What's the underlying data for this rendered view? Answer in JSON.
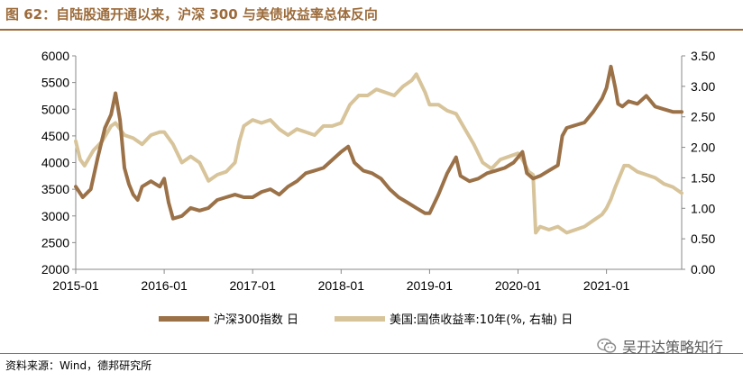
{
  "title": "图 62：自陆股通开通以来，沪深 300 与美债收益率总体反向",
  "source": "资料来源：Wind，德邦研究所",
  "watermark": "吴开达策略知行",
  "colors": {
    "accent": "#9c6b3a",
    "hs300": "#9b7148",
    "ust10y": "#d8c49a"
  },
  "chart_data": {
    "type": "line",
    "x_tick_labels": [
      "2015-01",
      "2016-01",
      "2017-01",
      "2018-01",
      "2019-01",
      "2020-01",
      "2021-01"
    ],
    "x_start": 2015.0,
    "x_end": 2021.85,
    "y_left": {
      "ylim": [
        2000,
        6000
      ],
      "ticks": [
        2000,
        2500,
        3000,
        3500,
        4000,
        4500,
        5000,
        5500,
        6000
      ]
    },
    "y_right": {
      "ylim": [
        0.0,
        3.5
      ],
      "ticks": [
        "0.00",
        "0.50",
        "1.00",
        "1.50",
        "2.00",
        "2.50",
        "3.00",
        "3.50"
      ]
    },
    "series": [
      {
        "name": "沪深300指数 日",
        "axis": "left",
        "x": [
          2015.0,
          2015.08,
          2015.17,
          2015.25,
          2015.33,
          2015.4,
          2015.45,
          2015.5,
          2015.55,
          2015.6,
          2015.65,
          2015.7,
          2015.75,
          2015.85,
          2015.95,
          2016.0,
          2016.05,
          2016.1,
          2016.2,
          2016.3,
          2016.4,
          2016.5,
          2016.6,
          2016.7,
          2016.8,
          2016.9,
          2017.0,
          2017.1,
          2017.2,
          2017.3,
          2017.4,
          2017.5,
          2017.6,
          2017.7,
          2017.8,
          2017.9,
          2018.0,
          2018.08,
          2018.15,
          2018.25,
          2018.35,
          2018.45,
          2018.55,
          2018.65,
          2018.75,
          2018.85,
          2018.95,
          2019.0,
          2019.1,
          2019.2,
          2019.3,
          2019.35,
          2019.45,
          2019.55,
          2019.65,
          2019.75,
          2019.85,
          2019.95,
          2020.0,
          2020.05,
          2020.1,
          2020.17,
          2020.25,
          2020.35,
          2020.45,
          2020.5,
          2020.55,
          2020.65,
          2020.75,
          2020.85,
          2020.95,
          2021.0,
          2021.05,
          2021.1,
          2021.13,
          2021.18,
          2021.25,
          2021.35,
          2021.45,
          2021.55,
          2021.65,
          2021.75,
          2021.85
        ],
        "values": [
          3550,
          3350,
          3500,
          4100,
          4650,
          4900,
          5300,
          4800,
          3900,
          3600,
          3400,
          3300,
          3550,
          3650,
          3550,
          3700,
          3250,
          2950,
          3000,
          3150,
          3100,
          3150,
          3300,
          3350,
          3400,
          3350,
          3350,
          3450,
          3500,
          3400,
          3550,
          3650,
          3800,
          3850,
          3900,
          4050,
          4200,
          4300,
          4000,
          3850,
          3800,
          3700,
          3500,
          3350,
          3250,
          3150,
          3050,
          3050,
          3400,
          3800,
          4100,
          3750,
          3650,
          3700,
          3800,
          3850,
          3900,
          4000,
          4100,
          4200,
          3800,
          3700,
          3750,
          3850,
          3950,
          4500,
          4650,
          4700,
          4750,
          4950,
          5200,
          5400,
          5800,
          5400,
          5100,
          5050,
          5150,
          5100,
          5250,
          5050,
          5000,
          4950,
          4950
        ]
      },
      {
        "name": "美国:国债收益率:10年(%, 右轴) 日",
        "axis": "right",
        "x": [
          2015.0,
          2015.05,
          2015.1,
          2015.2,
          2015.3,
          2015.4,
          2015.45,
          2015.55,
          2015.65,
          2015.75,
          2015.85,
          2015.95,
          2016.0,
          2016.1,
          2016.2,
          2016.3,
          2016.4,
          2016.5,
          2016.6,
          2016.7,
          2016.8,
          2016.85,
          2016.9,
          2017.0,
          2017.1,
          2017.2,
          2017.3,
          2017.4,
          2017.5,
          2017.6,
          2017.7,
          2017.8,
          2017.9,
          2018.0,
          2018.1,
          2018.2,
          2018.3,
          2018.4,
          2018.5,
          2018.6,
          2018.7,
          2018.8,
          2018.85,
          2018.95,
          2019.0,
          2019.1,
          2019.2,
          2019.3,
          2019.4,
          2019.5,
          2019.6,
          2019.7,
          2019.8,
          2019.9,
          2020.0,
          2020.05,
          2020.12,
          2020.17,
          2020.2,
          2020.25,
          2020.35,
          2020.45,
          2020.55,
          2020.65,
          2020.75,
          2020.85,
          2020.95,
          2021.0,
          2021.05,
          2021.1,
          2021.2,
          2021.25,
          2021.35,
          2021.45,
          2021.55,
          2021.65,
          2021.75,
          2021.85
        ],
        "values": [
          2.1,
          1.8,
          1.7,
          1.95,
          2.1,
          2.35,
          2.4,
          2.2,
          2.15,
          2.05,
          2.2,
          2.25,
          2.25,
          2.05,
          1.75,
          1.85,
          1.75,
          1.45,
          1.55,
          1.6,
          1.75,
          2.1,
          2.35,
          2.45,
          2.4,
          2.45,
          2.3,
          2.2,
          2.3,
          2.25,
          2.2,
          2.35,
          2.35,
          2.4,
          2.7,
          2.85,
          2.85,
          2.95,
          2.9,
          2.85,
          3.0,
          3.1,
          3.2,
          2.9,
          2.7,
          2.7,
          2.6,
          2.55,
          2.3,
          2.05,
          1.75,
          1.65,
          1.8,
          1.85,
          1.9,
          1.8,
          1.6,
          1.55,
          0.6,
          0.7,
          0.65,
          0.7,
          0.6,
          0.65,
          0.7,
          0.8,
          0.9,
          1.0,
          1.15,
          1.35,
          1.7,
          1.7,
          1.6,
          1.55,
          1.5,
          1.4,
          1.35,
          1.25
        ]
      }
    ]
  }
}
